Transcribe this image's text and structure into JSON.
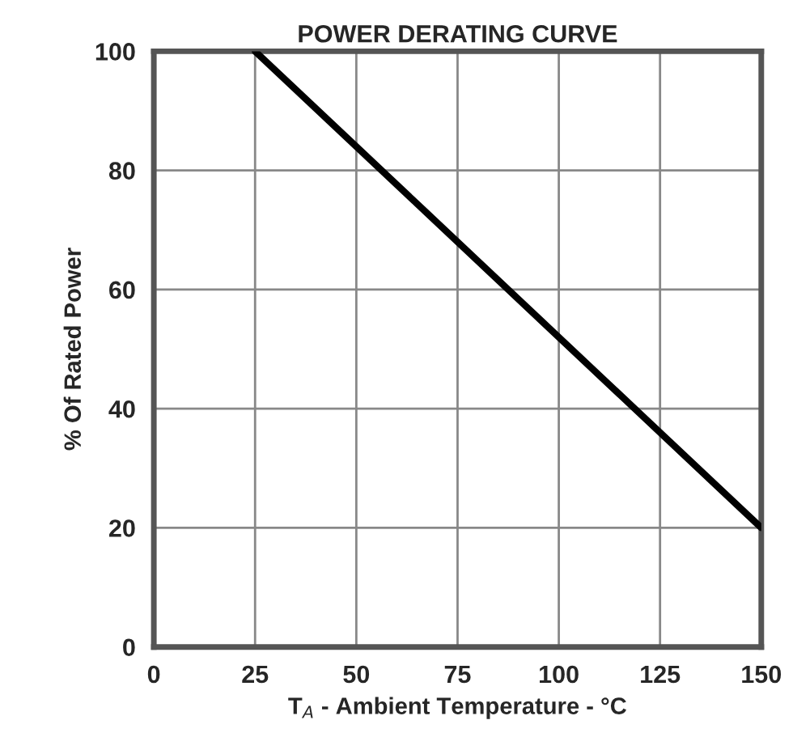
{
  "chart_data": {
    "type": "line",
    "title": "POWER DERATING CURVE",
    "xlabel": "T$_{A}$ - Ambient Temperature - °C",
    "ylabel": "% Of Rated Power",
    "x": [
      25,
      150
    ],
    "series": [
      {
        "color": "#000000",
        "values": [
          100,
          20
        ]
      }
    ],
    "xlim": [
      0,
      150
    ],
    "xticks": [
      0,
      25,
      50,
      75,
      100,
      125,
      150
    ],
    "ylim": [
      0,
      100
    ],
    "yticks": [
      0,
      20,
      40,
      60,
      80,
      100
    ],
    "grid": true,
    "marker": "none",
    "line_style": "solid"
  }
}
